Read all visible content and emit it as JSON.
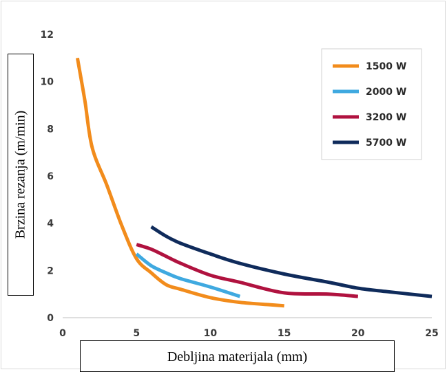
{
  "chart_data": {
    "type": "line",
    "xlabel": "Debljina materijala (mm)",
    "ylabel": "Brzina rezanja (m/min)",
    "xlim": [
      0,
      25
    ],
    "ylim": [
      0,
      12
    ],
    "x_ticks": [
      "0",
      "5",
      "10",
      "15",
      "20",
      "25"
    ],
    "y_ticks": [
      "0",
      "2",
      "4",
      "6",
      "8",
      "10",
      "12"
    ],
    "grid": false,
    "legend_position": "top-right",
    "series": [
      {
        "name": "1500 W",
        "color": "#f28c1c",
        "x": [
          1,
          1.5,
          2,
          3,
          4,
          5,
          6,
          7,
          8,
          10,
          12,
          14,
          15
        ],
        "y": [
          11,
          9.2,
          7.2,
          5.6,
          3.9,
          2.5,
          1.9,
          1.4,
          1.2,
          0.85,
          0.65,
          0.55,
          0.5
        ]
      },
      {
        "name": "2000 W",
        "color": "#3fa9e0",
        "x": [
          5,
          6,
          7,
          8,
          10,
          12
        ],
        "y": [
          2.7,
          2.2,
          1.9,
          1.65,
          1.3,
          0.9
        ]
      },
      {
        "name": "3200 W",
        "color": "#b0123f",
        "x": [
          5,
          6,
          7,
          8,
          10,
          12,
          15,
          18,
          20
        ],
        "y": [
          3.1,
          2.9,
          2.6,
          2.3,
          1.8,
          1.5,
          1.05,
          1.0,
          0.9
        ]
      },
      {
        "name": "5700 W",
        "color": "#0f2b5b",
        "x": [
          6,
          7,
          8,
          10,
          12,
          15,
          18,
          20,
          22,
          25
        ],
        "y": [
          3.85,
          3.45,
          3.15,
          2.7,
          2.3,
          1.85,
          1.5,
          1.25,
          1.1,
          0.9
        ]
      }
    ]
  }
}
